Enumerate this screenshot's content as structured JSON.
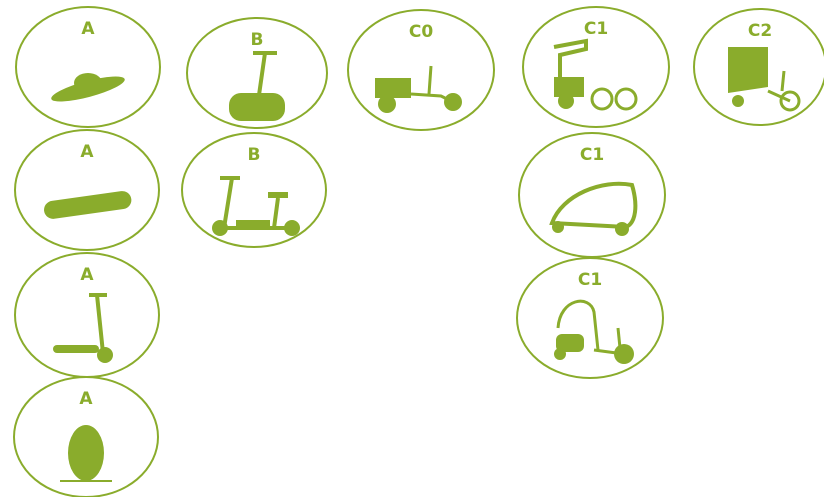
{
  "nodes": [
    {
      "label": "A"
    },
    {
      "label": "B"
    },
    {
      "label": "C0"
    },
    {
      "label": "C1"
    },
    {
      "label": "C2"
    },
    {
      "label": "A"
    },
    {
      "label": "B"
    },
    {
      "label": "C1"
    },
    {
      "label": "A"
    },
    {
      "label": "C1"
    },
    {
      "label": "A"
    }
  ]
}
